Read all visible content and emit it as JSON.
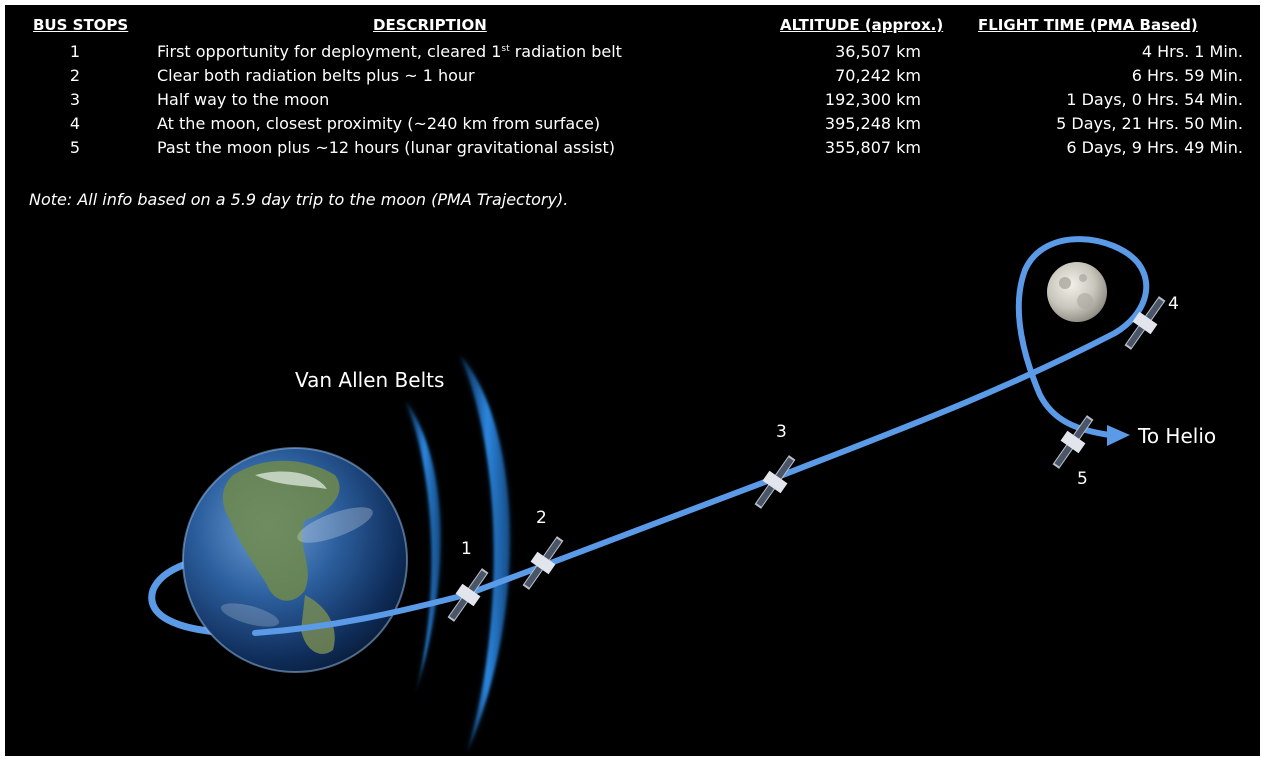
{
  "table": {
    "headers": {
      "stop": "BUS STOPS",
      "description": "DESCRIPTION",
      "altitude": "ALTITUDE (approx.)",
      "flight_time": "FLIGHT TIME (PMA Based)"
    },
    "rows": [
      {
        "stop": "1",
        "desc_main": "First opportunity for deployment, cleared 1",
        "desc_sup": "st",
        "desc_tail": " radiation belt",
        "altitude": "36,507 km",
        "time": "4 Hrs. 1 Min."
      },
      {
        "stop": "2",
        "desc_main": "Clear both radiation belts plus ~ 1 hour",
        "desc_sup": "",
        "desc_tail": "",
        "altitude": "70,242 km",
        "time": "6 Hrs. 59 Min."
      },
      {
        "stop": "3",
        "desc_main": "Half way to the moon",
        "desc_sup": "",
        "desc_tail": "",
        "altitude": "192,300 km",
        "time": "1 Days,  0 Hrs. 54 Min."
      },
      {
        "stop": "4",
        "desc_main": "At the moon, closest proximity (~240 km from surface)",
        "desc_sup": "",
        "desc_tail": "",
        "altitude": "395,248 km",
        "time": "5 Days,  21 Hrs. 50 Min."
      },
      {
        "stop": "5",
        "desc_main": "Past the moon plus ~12 hours (lunar gravitational assist)",
        "desc_sup": "",
        "desc_tail": "",
        "altitude": "355,807 km",
        "time": "6 Days,  9 Hrs. 49 Min."
      }
    ]
  },
  "note": "Note: All info based on a 5.9 day trip to the moon (PMA Trajectory).",
  "diagram": {
    "belts_label": "Van Allen Belts",
    "helio_label": "To Helio",
    "stop_labels": [
      "1",
      "2",
      "3",
      "4",
      "5"
    ]
  },
  "colors": {
    "background": "#000000",
    "trajectory": "#5b9ae6",
    "belt": "#2f8ee8"
  }
}
